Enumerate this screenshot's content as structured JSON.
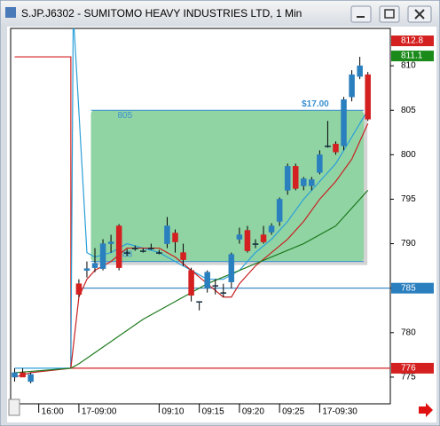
{
  "window_title": "S.JP.J6302 - SUMITOMO HEAVY INDUSTRIES LTD, 1 Min",
  "chart_data": {
    "type": "candlestick",
    "ylim": [
      772,
      814.2
    ],
    "xlim": [
      -0.5,
      46.8
    ],
    "yticks": [
      775,
      780,
      785,
      790,
      795,
      800,
      805,
      810
    ],
    "xticks": [
      {
        "value": 3,
        "label": "16:00"
      },
      {
        "value": 8,
        "label": "17-09:00"
      },
      {
        "value": 18,
        "label": "09:10"
      },
      {
        "value": 23,
        "label": "09:15"
      },
      {
        "value": 28,
        "label": "09:20"
      },
      {
        "value": 33,
        "label": "09:25"
      },
      {
        "value": 38,
        "label": "17-09:30"
      }
    ],
    "up_color": "#2a7fbf",
    "down_color": "#d42020",
    "candles": [
      {
        "o": 775,
        "h": 776,
        "l": 774.5,
        "c": 775.5
      },
      {
        "o": 775.5,
        "h": 776,
        "l": 775,
        "c": 775
      },
      {
        "o": 774.5,
        "h": 775.5,
        "l": 774.3,
        "c": 775.3
      },
      null,
      null,
      null,
      null,
      null,
      {
        "o": 785.5,
        "h": 786,
        "l": 784,
        "c": 784.3
      },
      {
        "o": 787,
        "h": 788,
        "l": 786.2,
        "c": 787.2
      },
      {
        "o": 787.3,
        "h": 789.5,
        "l": 786.8,
        "c": 787.8
      },
      {
        "o": 787.2,
        "h": 790.5,
        "l": 787,
        "c": 790
      },
      {
        "o": 790,
        "h": 791,
        "l": 789,
        "c": 790.2
      },
      {
        "o": 792,
        "h": 792.2,
        "l": 787,
        "c": 787.3
      },
      {
        "o": 789,
        "h": 789.4,
        "l": 788.6,
        "c": 789
      },
      {
        "o": 789.5,
        "h": 789.8,
        "l": 789.2,
        "c": 789.5
      },
      {
        "o": 789.2,
        "h": 789.5,
        "l": 789,
        "c": 789.2
      },
      {
        "o": 789.5,
        "h": 790,
        "l": 789.3,
        "c": 789.5
      },
      {
        "o": 789,
        "h": 789.3,
        "l": 788.8,
        "c": 789
      },
      {
        "o": 790,
        "h": 793,
        "l": 789.5,
        "c": 792
      },
      {
        "o": 791.2,
        "h": 791.6,
        "l": 789,
        "c": 790.2
      },
      {
        "o": 789,
        "h": 790,
        "l": 787.5,
        "c": 788.2
      },
      {
        "o": 787,
        "h": 787.3,
        "l": 783.5,
        "c": 784.2
      },
      {
        "o": 783.5,
        "h": 783.5,
        "l": 782.5,
        "c": 783.5
      },
      {
        "o": 785,
        "h": 787,
        "l": 784.5,
        "c": 786.8
      },
      {
        "o": 785.3,
        "h": 786,
        "l": 784.3,
        "c": 785.3
      },
      {
        "o": 784.5,
        "h": 785.5,
        "l": 784,
        "c": 784.5
      },
      {
        "o": 785.7,
        "h": 789,
        "l": 785,
        "c": 788.8
      },
      {
        "o": 790.5,
        "h": 791.8,
        "l": 790,
        "c": 791
      },
      {
        "o": 791.5,
        "h": 792,
        "l": 789,
        "c": 789.2
      },
      {
        "o": 790,
        "h": 790.5,
        "l": 789.5,
        "c": 790
      },
      {
        "o": 791,
        "h": 792,
        "l": 790,
        "c": 790.2
      },
      {
        "o": 791.3,
        "h": 792.3,
        "l": 791,
        "c": 792
      },
      {
        "o": 792.5,
        "h": 795.2,
        "l": 792,
        "c": 795
      },
      {
        "o": 796,
        "h": 799,
        "l": 795.5,
        "c": 798.7
      },
      {
        "o": 798.7,
        "h": 799,
        "l": 796,
        "c": 796.2
      },
      {
        "o": 796.5,
        "h": 797.5,
        "l": 796,
        "c": 797.3
      },
      {
        "o": 796.5,
        "h": 797.5,
        "l": 796,
        "c": 797.2
      },
      {
        "o": 798,
        "h": 800.5,
        "l": 797.8,
        "c": 800
      },
      {
        "o": 801,
        "h": 803.8,
        "l": 800.8,
        "c": 801
      },
      {
        "o": 801.2,
        "h": 801.5,
        "l": 800,
        "c": 800.3
      },
      {
        "o": 801,
        "h": 806.5,
        "l": 800.5,
        "c": 806.2
      },
      {
        "o": 806.5,
        "h": 809.5,
        "l": 806,
        "c": 809
      },
      {
        "o": 808.8,
        "h": 811,
        "l": 808.5,
        "c": 810
      },
      {
        "o": 809,
        "h": 809.3,
        "l": 803.8,
        "c": 804
      }
    ],
    "lines": [
      {
        "color": "#d42020",
        "x": [
          0,
          7,
          7,
          46.8
        ],
        "values": [
          811,
          811,
          776,
          776
        ]
      },
      {
        "color": "#2a7fbf",
        "x": [
          8,
          46.8
        ],
        "values": [
          785,
          785
        ]
      },
      {
        "color": "#2a9fd8",
        "x": [
          0,
          2,
          7,
          7.3,
          9,
          10,
          12,
          14,
          16,
          18,
          20,
          22,
          24,
          26,
          28,
          30,
          32,
          34,
          36,
          38,
          40,
          42,
          44
        ],
        "values": [
          776,
          776,
          776,
          816,
          789,
          788.5,
          789,
          790,
          789.5,
          789,
          788,
          787,
          786,
          786,
          787,
          789,
          790.5,
          792.5,
          795,
          797,
          799,
          802,
          805
        ]
      },
      {
        "color": "#c82020",
        "x": [
          0,
          2,
          7,
          8,
          9,
          10,
          12,
          14,
          18,
          20,
          22,
          24,
          26,
          27,
          28,
          30,
          32,
          34,
          36,
          38,
          40,
          42,
          44
        ],
        "values": [
          775,
          775.5,
          776,
          784,
          786,
          787,
          788,
          789.5,
          789.5,
          788.5,
          787,
          785.5,
          784,
          784,
          785.5,
          787.5,
          789,
          790.5,
          792.5,
          795,
          797,
          799.5,
          803.5
        ]
      },
      {
        "color": "#1e7a1e",
        "x": [
          0,
          7,
          8,
          12,
          16,
          20,
          24,
          28,
          32,
          36,
          40,
          44
        ],
        "values": [
          775.5,
          776,
          776.5,
          779,
          781.5,
          783.5,
          785.5,
          787,
          788.5,
          790,
          792,
          796
        ]
      }
    ],
    "zone": {
      "x": [
        9.5,
        43.5
      ],
      "top": 805,
      "bottom": 788,
      "color": "#90d4a4",
      "line_color": "#3a8fd0",
      "annotation": "$17.00"
    },
    "price_markers": [
      {
        "value": 812.8,
        "color": "#d42020"
      },
      {
        "value": 811.1,
        "color": "#1a8a1a"
      },
      {
        "value": 785,
        "color": "#2a7fbf"
      },
      {
        "value": 776,
        "color": "#d42020"
      }
    ]
  }
}
